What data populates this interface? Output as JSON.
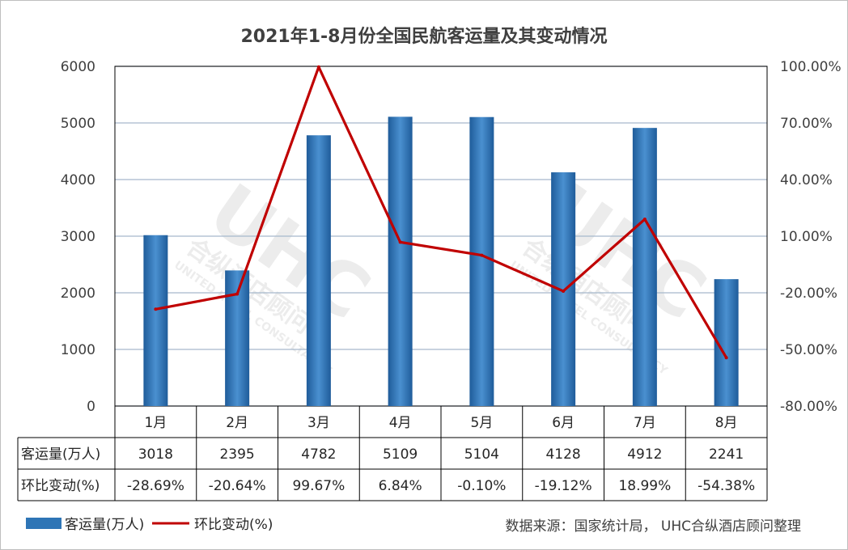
{
  "chart_data": {
    "type": "bar+line",
    "title": "2021年1-8月份全国民航客运量及其变动情况",
    "categories": [
      "1月",
      "2月",
      "3月",
      "4月",
      "5月",
      "6月",
      "7月",
      "8月"
    ],
    "series": [
      {
        "name": "客运量(万人)",
        "type": "bar",
        "axis": "left",
        "values": [
          3018,
          2395,
          4782,
          5109,
          5104,
          4128,
          4912,
          2241
        ],
        "labels": [
          "3018",
          "2395",
          "4782",
          "5109",
          "5104",
          "4128",
          "4912",
          "2241"
        ],
        "color": "#2e75b6"
      },
      {
        "name": "环比变动(%)",
        "type": "line",
        "axis": "right",
        "values": [
          -28.69,
          -20.64,
          99.67,
          6.84,
          -0.1,
          -19.12,
          18.99,
          -54.38
        ],
        "labels": [
          "-28.69%",
          "-20.64%",
          "99.67%",
          "6.84%",
          "-0.10%",
          "-19.12%",
          "18.99%",
          "-54.38%"
        ],
        "color": "#c00000"
      }
    ],
    "y_left": {
      "ylim": [
        0,
        6000
      ],
      "ticks": [
        "0",
        "1000",
        "2000",
        "3000",
        "4000",
        "5000",
        "6000"
      ]
    },
    "y_right": {
      "ylim": [
        -80,
        100
      ],
      "ticks": [
        "-80.00%",
        "-50.00%",
        "-20.00%",
        "10.00%",
        "40.00%",
        "70.00%",
        "100.00%"
      ]
    },
    "grid": true,
    "legend_position": "bottom-left",
    "data_table": true
  },
  "source_note": "数据来源：国家统计局， UHC合纵酒店顾问整理",
  "watermark": {
    "logo": "UHC",
    "text_cn": "合纵酒店顾问",
    "text_en": "UNITED HOTEL CONSULTANCY"
  }
}
